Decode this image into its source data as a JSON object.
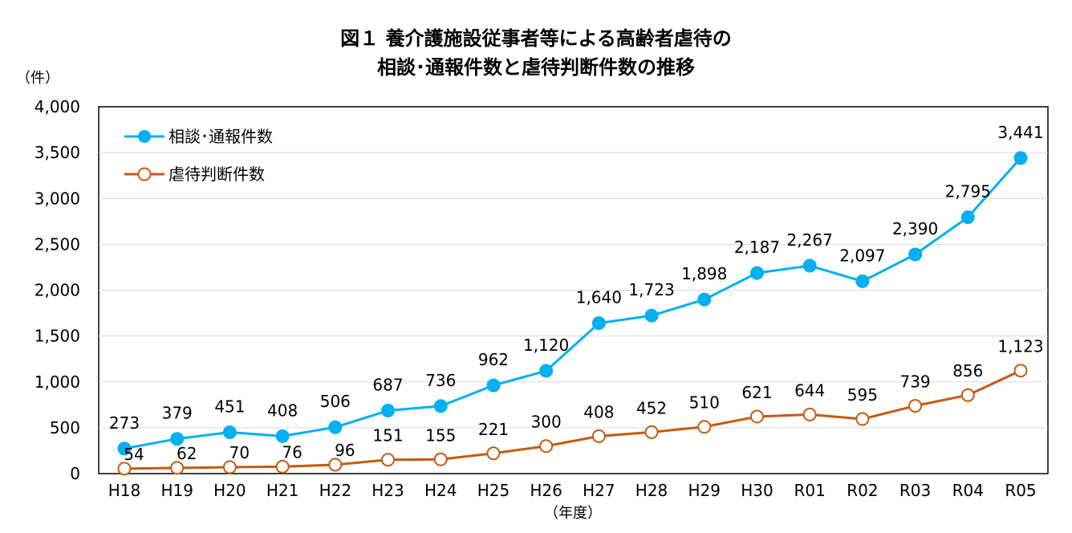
{
  "chart_data": {
    "type": "line",
    "title_line1": "図１ 養介護施設従事者等による高齢者虐待の",
    "title_line2": "相談･通報件数と虐待判断件数の推移",
    "y_unit": "（件）",
    "xlabel": "（年度）",
    "categories": [
      "H18",
      "H19",
      "H20",
      "H21",
      "H22",
      "H23",
      "H24",
      "H25",
      "H26",
      "H27",
      "H28",
      "H29",
      "H30",
      "R01",
      "R02",
      "R03",
      "R04",
      "R05"
    ],
    "ylim": [
      0,
      4000
    ],
    "y_ticks": [
      0,
      500,
      1000,
      1500,
      2000,
      2500,
      3000,
      3500,
      4000
    ],
    "y_tick_labels": [
      "0",
      "500",
      "1,000",
      "1,500",
      "2,000",
      "2,500",
      "3,000",
      "3,500",
      "4,000"
    ],
    "grid": true,
    "legend_position": "top-left",
    "series": [
      {
        "name": "相談･通報件数",
        "color": "#00B0F0",
        "marker": "filled-circle",
        "values": [
          273,
          379,
          451,
          408,
          506,
          687,
          736,
          962,
          1120,
          1640,
          1723,
          1898,
          2187,
          2267,
          2097,
          2390,
          2795,
          3441
        ],
        "labels": [
          "273",
          "379",
          "451",
          "408",
          "506",
          "687",
          "736",
          "962",
          "1,120",
          "1,640",
          "1,723",
          "1,898",
          "2,187",
          "2,267",
          "2,097",
          "2,390",
          "2,795",
          "3,441"
        ]
      },
      {
        "name": "虐待判断件数",
        "color": "#C55A11",
        "marker": "hollow-circle",
        "values": [
          54,
          62,
          70,
          76,
          96,
          151,
          155,
          221,
          300,
          408,
          452,
          510,
          621,
          644,
          595,
          739,
          856,
          1123
        ],
        "labels": [
          "54",
          "62",
          "70",
          "76",
          "96",
          "151",
          "155",
          "221",
          "300",
          "408",
          "452",
          "510",
          "621",
          "644",
          "595",
          "739",
          "856",
          "1,123"
        ]
      }
    ]
  }
}
